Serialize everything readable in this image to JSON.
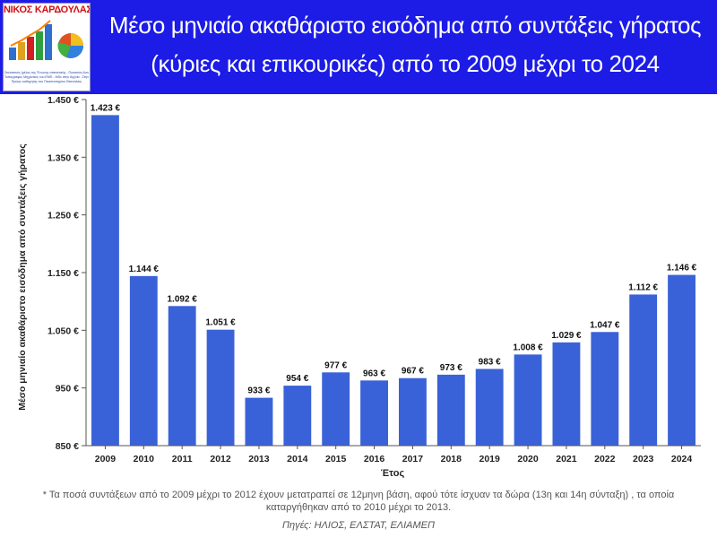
{
  "header": {
    "title_line1": "Μέσο μηνιαίο ακαθάριστο εισόδημα από συντάξεις γήρατος",
    "title_line2": "(κύριες και επικουρικές) από το 2009 μέχρι το 2024",
    "background_color": "#1c1ce6"
  },
  "logo": {
    "name": "ΝΙΚΟΣ ΚΑΡΔΟΥΛΑΣ",
    "line1": "Στατιστικός (μέλος της Ένωσης στατιστικής - Ποιοτικός Αναλυτής",
    "line2": "Τοπογράφος Μηχανικός του ΕΜΠ - MSc στην Αγγλία - Στην εταιρ.",
    "line3": "Πρώην καθηγητής του Πανεπιστημίου Θεσσαλίας"
  },
  "chart_data": {
    "type": "bar",
    "title": "Μέσο μηνιαίο ακαθάριστο εισόδημα από συντάξεις γήρατος (κύριες και επικουρικές) από το 2009 μέχρι το 2024",
    "xlabel": "Έτος",
    "ylabel": "Μέσο μηνιαίο ακαθάριστο εισόδημα από συντάξεις γήρατος",
    "categories": [
      "2009",
      "2010",
      "2011",
      "2012",
      "2013",
      "2014",
      "2015",
      "2016",
      "2017",
      "2018",
      "2019",
      "2020",
      "2021",
      "2022",
      "2023",
      "2024"
    ],
    "values": [
      1423,
      1144,
      1092,
      1051,
      933,
      954,
      977,
      963,
      967,
      973,
      983,
      1008,
      1029,
      1047,
      1112,
      1146
    ],
    "data_labels": [
      "1.423 €",
      "1.144 €",
      "1.092 €",
      "1.051 €",
      "933 €",
      "954 €",
      "977 €",
      "963 €",
      "967 €",
      "973 €",
      "983 €",
      "1.008 €",
      "1.029 €",
      "1.047 €",
      "1.112 €",
      "1.146 €"
    ],
    "ylim": [
      850,
      1450
    ],
    "yticks": [
      850,
      950,
      1050,
      1150,
      1250,
      1350,
      1450
    ],
    "ytick_labels": [
      "850 €",
      "950 €",
      "1.050 €",
      "1.150 €",
      "1.250 €",
      "1.350 €",
      "1.450 €"
    ],
    "bar_color": "#3a62d8",
    "grid": false,
    "legend": "none"
  },
  "footnote": "* Τα ποσά συντάξεων από το 2009 μέχρι το 2012 έχουν μετατραπεί σε 12μηνη βάση, αφού τότε ίσχυαν τα δώρα (13η και 14η σύνταξη) , τα οποία καταργήθηκαν από το 2010 μέχρι το 2013.",
  "sources": "Πηγές: ΗΛΙΟΣ, ΕΛΣΤΑΤ, ΕΛΙΑΜΕΠ"
}
